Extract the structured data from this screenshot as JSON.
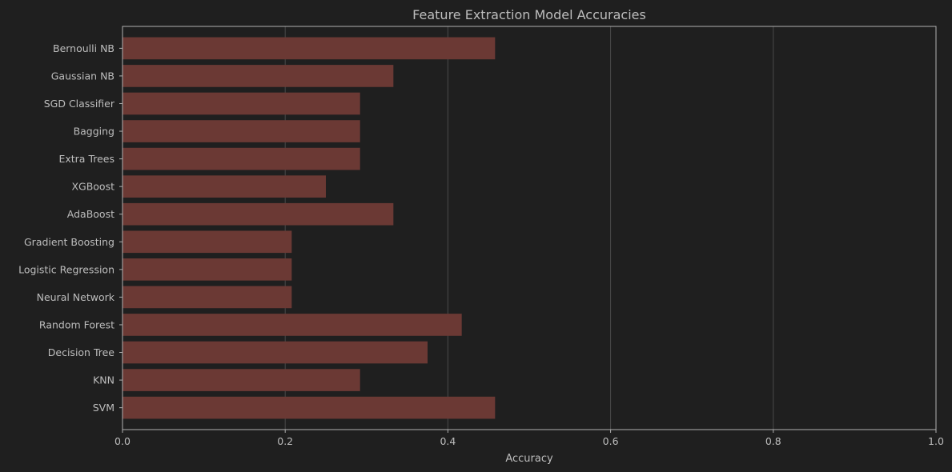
{
  "chart_data": {
    "type": "bar",
    "orientation": "horizontal",
    "title": "Feature Extraction Model Accuracies",
    "xlabel": "Accuracy",
    "ylabel": "",
    "xlim": [
      0,
      1.0
    ],
    "x_ticks": [
      "0.0",
      "0.2",
      "0.4",
      "0.6",
      "0.8",
      "1.0"
    ],
    "grid": "vertical",
    "categories": [
      "Bernoulli NB",
      "Gaussian NB",
      "SGD Classifier",
      "Bagging",
      "Extra Trees",
      "XGBoost",
      "AdaBoost",
      "Gradient Boosting",
      "Logistic Regression",
      "Neural Network",
      "Random Forest",
      "Decision Tree",
      "KNN",
      "SVM"
    ],
    "values": [
      0.458,
      0.333,
      0.292,
      0.292,
      0.292,
      0.25,
      0.333,
      0.208,
      0.208,
      0.208,
      0.417,
      0.375,
      0.292,
      0.458
    ],
    "colors": {
      "background": "#1f1f1f",
      "bar": "#6b3934",
      "grid": "#4a4a4a",
      "axis": "#b0b0b0",
      "text": "#bdbdbd"
    }
  }
}
